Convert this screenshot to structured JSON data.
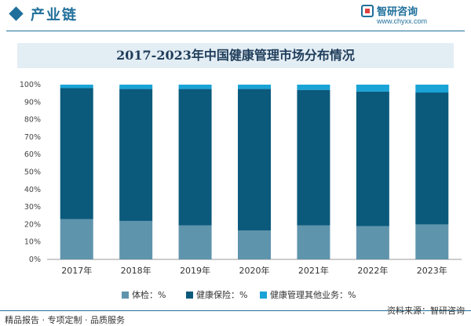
{
  "header": {
    "section_title": "产业链",
    "logo_name": "智研咨询",
    "logo_url": "www.chyxx.com"
  },
  "colors": {
    "accent": "#1f6f9a",
    "series": [
      "#5f94ad",
      "#0b5a7c",
      "#1aa3d6"
    ]
  },
  "chart_data": {
    "type": "bar",
    "stacked": true,
    "title": "2017-2023年中国健康管理市场分布情况",
    "categories": [
      "2017年",
      "2018年",
      "2019年",
      "2020年",
      "2021年",
      "2022年",
      "2023年"
    ],
    "series": [
      {
        "name": "体检：%",
        "values": [
          23,
          22,
          19.5,
          16.5,
          19.5,
          19,
          20
        ]
      },
      {
        "name": "健康保险：%",
        "values": [
          75,
          75.5,
          78,
          81,
          77.5,
          77,
          75.5
        ]
      },
      {
        "name": "健康管理其他业务：%",
        "values": [
          2,
          2.5,
          2.5,
          2.5,
          3,
          4,
          4.5
        ]
      }
    ],
    "yticks": [
      "0%",
      "10%",
      "20%",
      "30%",
      "40%",
      "50%",
      "60%",
      "70%",
      "80%",
      "90%",
      "100%"
    ],
    "ylim": [
      0,
      100
    ],
    "xlabel": "",
    "ylabel": "",
    "legend_position": "bottom",
    "grid": false
  },
  "footer": {
    "left": "精品报告 · 专项定制 · 品质服务",
    "right": "资料来源：智研咨询"
  }
}
